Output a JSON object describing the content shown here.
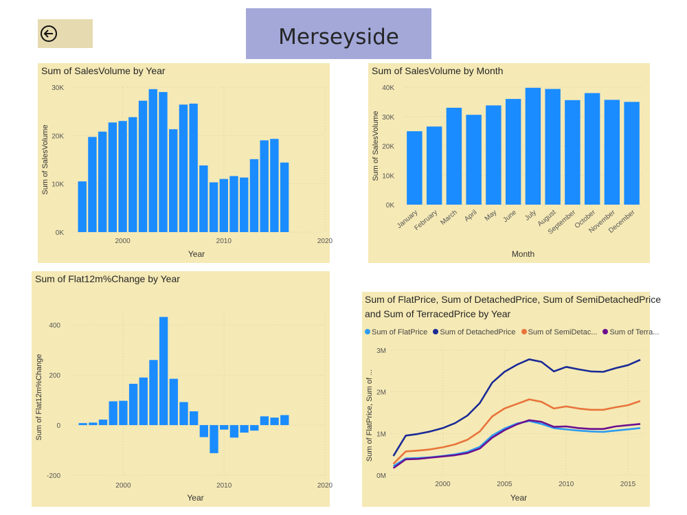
{
  "page": {
    "title": "Merseyside",
    "back_icon": "arrow-left-circle-icon"
  },
  "colors": {
    "bar": "#1a8cff",
    "panel": "#f5e9b5",
    "title_box": "#a3a8d9",
    "back_button": "#e6dbb0",
    "grid": "#d6ceb0"
  },
  "chart_data": [
    {
      "type": "bar",
      "title": "Sum of SalesVolume by Year",
      "xlabel": "Year",
      "ylabel": "Sum of SalesVolume",
      "x": [
        1996,
        1997,
        1998,
        1999,
        2000,
        2001,
        2002,
        2003,
        2004,
        2005,
        2006,
        2007,
        2008,
        2009,
        2010,
        2011,
        2012,
        2013,
        2014,
        2015,
        2016
      ],
      "values": [
        10500,
        19700,
        20800,
        22700,
        23000,
        23800,
        27200,
        29600,
        29000,
        21300,
        26400,
        26600,
        13800,
        10300,
        11000,
        11600,
        11300,
        15100,
        19000,
        19300,
        14400
      ],
      "xlim": [
        1995,
        2020
      ],
      "ylim": [
        0,
        30000
      ],
      "xticks": [
        2000,
        2010,
        2020
      ],
      "xtick_labels": [
        "2000",
        "2010",
        "2020"
      ],
      "yticks": [
        0,
        10000,
        20000,
        30000
      ],
      "ytick_labels": [
        "0K",
        "10K",
        "20K",
        "30K"
      ],
      "grid": true
    },
    {
      "type": "bar",
      "title": "Sum of SalesVolume by Month",
      "xlabel": "Month",
      "ylabel": "Sum of SalesVolume",
      "categories": [
        "January",
        "February",
        "March",
        "April",
        "May",
        "June",
        "July",
        "August",
        "September",
        "October",
        "November",
        "December"
      ],
      "values": [
        25000,
        26600,
        33000,
        30600,
        33800,
        36000,
        39800,
        39400,
        35600,
        38000,
        35700,
        35000
      ],
      "ylim": [
        0,
        40000
      ],
      "yticks": [
        0,
        10000,
        20000,
        30000,
        40000
      ],
      "ytick_labels": [
        "0K",
        "10K",
        "20K",
        "30K",
        "40K"
      ],
      "grid": true
    },
    {
      "type": "bar",
      "title": "Sum of Flat12m%Change by Year",
      "xlabel": "Year",
      "ylabel": "Sum of Flat12m%Change",
      "x": [
        1996,
        1997,
        1998,
        1999,
        2000,
        2001,
        2002,
        2003,
        2004,
        2005,
        2006,
        2007,
        2008,
        2009,
        2010,
        2011,
        2012,
        2013,
        2014,
        2015,
        2016
      ],
      "values": [
        8,
        10,
        22,
        95,
        97,
        165,
        190,
        260,
        432,
        185,
        92,
        55,
        -48,
        -112,
        -18,
        -50,
        -30,
        -22,
        35,
        30,
        40
      ],
      "xlim": [
        1995,
        2020
      ],
      "ylim": [
        -200,
        450
      ],
      "xticks": [
        2000,
        2010,
        2020
      ],
      "xtick_labels": [
        "2000",
        "2010",
        "2020"
      ],
      "yticks": [
        -200,
        0,
        200,
        400
      ],
      "ytick_labels": [
        "-200",
        "0",
        "200",
        "400"
      ],
      "grid": true
    },
    {
      "type": "line",
      "title": "Sum of FlatPrice, Sum of DetachedPrice, Sum of SemiDetachedPrice",
      "title_line2": "and Sum of TerracedPrice by Year",
      "xlabel": "Year",
      "ylabel": "Sum of FlatPrice, Sum of ...",
      "x": [
        1996,
        1997,
        1998,
        1999,
        2000,
        2001,
        2002,
        2003,
        2004,
        2005,
        2006,
        2007,
        2008,
        2009,
        2010,
        2011,
        2012,
        2013,
        2014,
        2015,
        2016
      ],
      "series": [
        {
          "name": "Sum of FlatPrice",
          "legend_label": "Sum of FlatPrice",
          "color": "#2d9cf0",
          "values": [
            220000,
            400000,
            410000,
            430000,
            460000,
            500000,
            560000,
            680000,
            950000,
            1120000,
            1240000,
            1300000,
            1230000,
            1130000,
            1100000,
            1070000,
            1050000,
            1040000,
            1070000,
            1100000,
            1130000
          ]
        },
        {
          "name": "Sum of DetachedPrice",
          "legend_label": "Sum of DetachedPrice",
          "color": "#1a2a96",
          "values": [
            460000,
            950000,
            990000,
            1050000,
            1130000,
            1250000,
            1430000,
            1730000,
            2220000,
            2480000,
            2650000,
            2780000,
            2720000,
            2490000,
            2600000,
            2540000,
            2490000,
            2480000,
            2570000,
            2640000,
            2770000
          ]
        },
        {
          "name": "Sum of SemiDetachedPrice",
          "legend_label": "Sum of SemiDetac...",
          "color": "#e8743b",
          "values": [
            270000,
            570000,
            590000,
            620000,
            670000,
            740000,
            850000,
            1050000,
            1410000,
            1600000,
            1710000,
            1820000,
            1760000,
            1600000,
            1650000,
            1600000,
            1570000,
            1570000,
            1630000,
            1680000,
            1780000
          ]
        },
        {
          "name": "Sum of TerracedPrice",
          "legend_label": "Sum of Terra...",
          "color": "#6b0f8f",
          "values": [
            170000,
            380000,
            390000,
            420000,
            450000,
            480000,
            530000,
            640000,
            900000,
            1080000,
            1220000,
            1320000,
            1280000,
            1160000,
            1170000,
            1130000,
            1110000,
            1110000,
            1170000,
            1200000,
            1230000
          ]
        }
      ],
      "xlim": [
        1995.8,
        2016.5
      ],
      "ylim": [
        0,
        3000000
      ],
      "xticks": [
        2000,
        2005,
        2010,
        2015
      ],
      "xtick_labels": [
        "2000",
        "2005",
        "2010",
        "2015"
      ],
      "yticks": [
        0,
        1000000,
        2000000,
        3000000
      ],
      "ytick_labels": [
        "0M",
        "1M",
        "2M",
        "3M"
      ],
      "legend": "top-left",
      "grid": true
    }
  ]
}
